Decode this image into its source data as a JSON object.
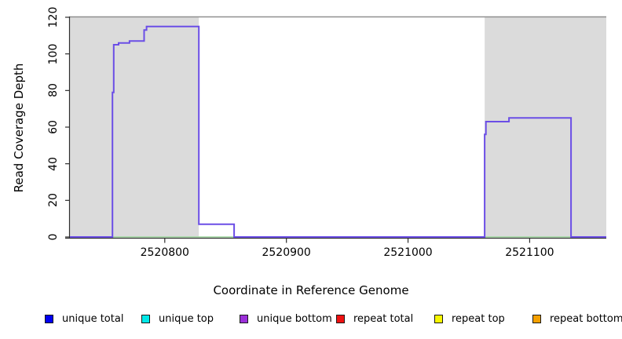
{
  "chart_data": {
    "type": "line",
    "step": true,
    "title": "",
    "xlabel": "Coordinate in Reference Genome",
    "ylabel": "Read Coverage Depth",
    "xlim": [
      2520722,
      2521163
    ],
    "ylim": [
      0,
      120
    ],
    "x_ticks": [
      "2520800",
      "2520900",
      "2521000",
      "2521100"
    ],
    "x_tick_values": [
      2520800,
      2520900,
      2521000,
      2521100
    ],
    "y_ticks": [
      "0",
      "20",
      "40",
      "60",
      "80",
      "100",
      "120"
    ],
    "y_tick_values": [
      0,
      20,
      40,
      60,
      80,
      100,
      120
    ],
    "grid": false,
    "legend_position": "bottom",
    "shaded_regions": [
      {
        "x0": 2520722,
        "x1": 2520828,
        "color": "#DBDBDB"
      },
      {
        "x0": 2521063,
        "x1": 2521163,
        "color": "#DBDBDB"
      }
    ],
    "top_boundary_line": {
      "y": 120,
      "color": "#8F8F8F"
    },
    "series": [
      {
        "name": "baseline",
        "color": "#9CD49C",
        "width": 1.4,
        "points": [
          [
            2520757,
            0
          ],
          [
            2521134,
            0
          ]
        ]
      },
      {
        "name": "unique bottom",
        "color": "#6B4EE6",
        "width": 2,
        "points": [
          [
            2520722,
            0
          ],
          [
            2520757,
            0
          ],
          [
            2520757,
            79
          ],
          [
            2520758,
            79
          ],
          [
            2520758,
            105
          ],
          [
            2520762,
            105
          ],
          [
            2520762,
            106
          ],
          [
            2520771,
            106
          ],
          [
            2520771,
            107
          ],
          [
            2520783,
            107
          ],
          [
            2520783,
            113
          ],
          [
            2520785,
            113
          ],
          [
            2520785,
            115
          ],
          [
            2520828,
            115
          ],
          [
            2520828,
            7
          ],
          [
            2520857,
            7
          ],
          [
            2520857,
            0
          ],
          [
            2521063,
            0
          ],
          [
            2521063,
            56
          ],
          [
            2521064,
            56
          ],
          [
            2521064,
            63
          ],
          [
            2521083,
            63
          ],
          [
            2521083,
            65
          ],
          [
            2521134,
            65
          ],
          [
            2521134,
            0
          ],
          [
            2521163,
            0
          ]
        ]
      }
    ],
    "legend": [
      {
        "label": "unique total",
        "color": "#0000F0"
      },
      {
        "label": "unique top",
        "color": "#00E8E8"
      },
      {
        "label": "unique bottom",
        "color": "#9B2FD9"
      },
      {
        "label": "repeat total",
        "color": "#EE1111"
      },
      {
        "label": "repeat top",
        "color": "#F7F700"
      },
      {
        "label": "repeat bottom",
        "color": "#F5A000"
      }
    ]
  }
}
